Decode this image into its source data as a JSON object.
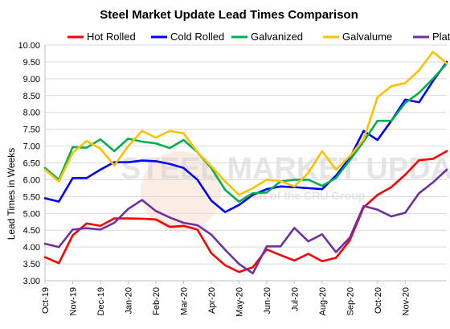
{
  "chart_data": {
    "type": "line",
    "title": "Steel Market Update Lead Times Comparison",
    "ylabel": "Lead Times in Weeks",
    "xlabel": "",
    "ylim": [
      3.0,
      10.0
    ],
    "yticks": [
      "3.00",
      "3.50",
      "4.00",
      "4.50",
      "5.00",
      "5.50",
      "6.00",
      "6.50",
      "7.00",
      "7.50",
      "8.00",
      "8.50",
      "9.00",
      "9.50",
      "10.00"
    ],
    "x_tick_labels": [
      "Oct-19",
      "Nov-19",
      "Dec-19",
      "Jan-20",
      "Feb-20",
      "Mar-20",
      "Apr-20",
      "May-20",
      "Jun-20",
      "Jul-20",
      "Aug-20",
      "Sep-20",
      "Oct-20",
      "Nov-20"
    ],
    "points_per_month": 2,
    "grid": "horizontal",
    "legend_position": "top",
    "series": [
      {
        "name": "Hot Rolled",
        "color": "#ff0000",
        "values": [
          3.7,
          3.52,
          4.35,
          4.7,
          4.63,
          4.85,
          4.85,
          4.84,
          4.82,
          4.6,
          4.63,
          4.52,
          3.82,
          3.46,
          3.26,
          3.4,
          3.93,
          3.76,
          3.6,
          3.8,
          3.58,
          3.68,
          4.2,
          5.18,
          5.55,
          5.78,
          6.15,
          6.58,
          6.62,
          6.85
        ]
      },
      {
        "name": "Cold Rolled",
        "color": "#0000ff",
        "values": [
          5.45,
          5.35,
          6.05,
          6.05,
          6.3,
          6.52,
          6.52,
          6.57,
          6.55,
          6.47,
          6.35,
          6.0,
          5.38,
          5.04,
          5.25,
          5.55,
          5.72,
          5.8,
          5.78,
          5.75,
          5.72,
          6.12,
          6.65,
          7.45,
          7.18,
          7.75,
          8.38,
          8.3,
          8.93,
          9.5
        ]
      },
      {
        "name": "Galvanized",
        "color": "#00b050",
        "values": [
          6.35,
          6.0,
          6.97,
          6.95,
          7.2,
          6.85,
          7.22,
          7.13,
          7.08,
          6.94,
          7.18,
          6.82,
          6.35,
          5.7,
          5.35,
          5.6,
          5.62,
          5.95,
          6.0,
          6.0,
          5.82,
          6.05,
          6.58,
          7.14,
          7.75,
          7.75,
          8.28,
          8.58,
          9.0,
          9.45
        ]
      },
      {
        "name": "Galvalume",
        "color": "#ffc000",
        "values": [
          6.3,
          5.95,
          6.8,
          7.15,
          6.92,
          6.42,
          7.0,
          7.45,
          7.25,
          7.45,
          7.38,
          6.82,
          6.4,
          5.95,
          5.55,
          5.75,
          6.0,
          5.96,
          5.8,
          6.2,
          6.85,
          6.3,
          6.7,
          7.2,
          8.45,
          8.78,
          8.87,
          9.25,
          9.8,
          9.45
        ]
      },
      {
        "name": "Plate",
        "color": "#7030a0",
        "values": [
          4.1,
          4.0,
          4.52,
          4.56,
          4.52,
          4.72,
          5.13,
          5.4,
          5.07,
          4.88,
          4.72,
          4.65,
          4.37,
          3.92,
          3.5,
          3.22,
          4.02,
          4.02,
          4.57,
          4.17,
          4.38,
          3.85,
          4.28,
          5.22,
          5.11,
          4.91,
          5.02,
          5.6,
          5.92,
          6.3
        ]
      }
    ]
  },
  "watermark": {
    "line1": "STEEL MARKET UPDATE",
    "line2": "Part of the CRU Group"
  }
}
